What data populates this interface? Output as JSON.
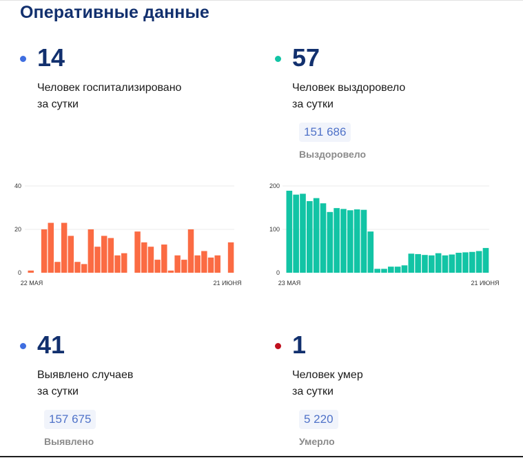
{
  "page_title": "Оперативные данные",
  "colors": {
    "blue": "#3f6ee0",
    "teal": "#12c4a5",
    "red": "#c0101e",
    "orange": "#fb6b43"
  },
  "stats": {
    "hospitalized": {
      "value": "14",
      "line1": "Человек госпитализировано",
      "line2": "за сутки"
    },
    "recovered": {
      "value": "57",
      "line1": "Человек выздоровело",
      "line2": "за сутки",
      "total": "151 686",
      "total_label": "Выздоровело"
    },
    "detected": {
      "value": "41",
      "line1": "Выявлено случаев",
      "line2": "за сутки",
      "total": "157 675",
      "total_label": "Выявлено"
    },
    "died": {
      "value": "1",
      "line1": "Человек умер",
      "line2": "за сутки",
      "total": "5 220",
      "total_label": "Умерло"
    }
  },
  "chart_data": [
    {
      "type": "bar",
      "x_start_label": "22 МАЯ",
      "x_end_label": "21 ИЮНЯ",
      "yticks": [
        0,
        20,
        40
      ],
      "ylim": [
        0,
        40
      ],
      "grid": true,
      "color": "#fb6b43",
      "values": [
        1,
        0,
        20,
        23,
        5,
        23,
        17,
        5,
        4,
        20,
        12,
        17,
        16,
        8,
        9,
        0,
        19,
        14,
        12,
        6,
        13,
        1,
        8,
        6,
        20,
        8,
        10,
        7,
        8,
        0,
        14
      ]
    },
    {
      "type": "bar",
      "x_start_label": "23 МАЯ",
      "x_end_label": "21 ИЮНЯ",
      "yticks": [
        0,
        100,
        200
      ],
      "ylim": [
        0,
        200
      ],
      "grid": true,
      "color": "#12c4a5",
      "values": [
        189,
        180,
        182,
        165,
        172,
        160,
        140,
        149,
        147,
        144,
        146,
        145,
        95,
        9,
        9,
        14,
        14,
        17,
        44,
        43,
        41,
        40,
        45,
        40,
        42,
        46,
        47,
        48,
        50,
        57
      ]
    }
  ]
}
